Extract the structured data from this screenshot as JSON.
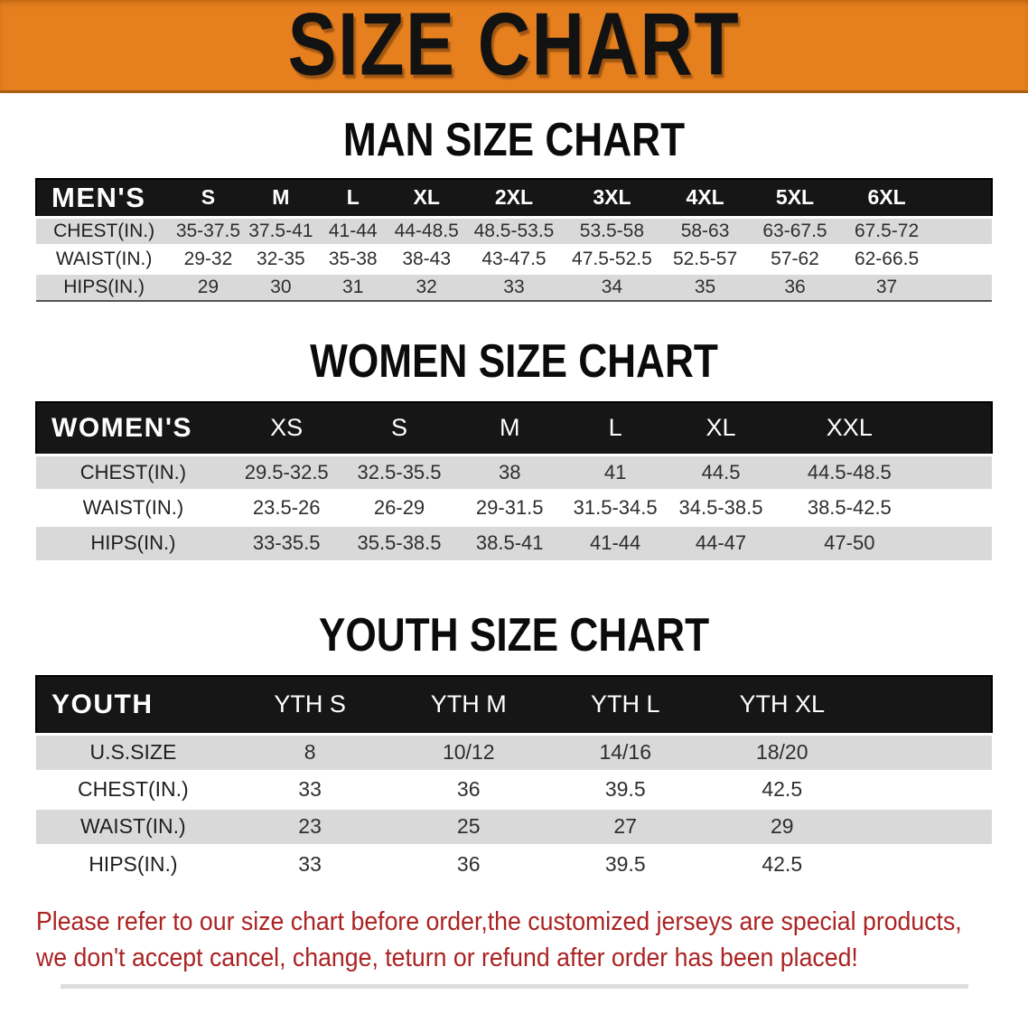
{
  "banner": {
    "title": "SIZE CHART"
  },
  "colors": {
    "banner_bg": "#E67F1E",
    "banner_edge": "#A85C10",
    "header_bar_bg": "#161616",
    "header_bar_text": "#FFFFFF",
    "row_gray": "#D9D9D9",
    "row_white": "#FFFFFF",
    "cell_text": "#2E2E2E",
    "footer_text": "#AB2323"
  },
  "tables": {
    "men": {
      "heading": "MAN SIZE CHART",
      "corner_label": "MEN'S",
      "size_headers": [
        "S",
        "M",
        "L",
        "XL",
        "2XL",
        "3XL",
        "4XL",
        "5XL",
        "6XL"
      ],
      "rows": [
        {
          "label": "CHEST(IN.)",
          "values": [
            "35-37.5",
            "37.5-41",
            "41-44",
            "44-48.5",
            "48.5-53.5",
            "53.5-58",
            "58-63",
            "63-67.5",
            "67.5-72"
          ]
        },
        {
          "label": "WAIST(IN.)",
          "values": [
            "29-32",
            "32-35",
            "35-38",
            "38-43",
            "43-47.5",
            "47.5-52.5",
            "52.5-57",
            "57-62",
            "62-66.5"
          ]
        },
        {
          "label": "HIPS(IN.)",
          "values": [
            "29",
            "30",
            "31",
            "32",
            "33",
            "34",
            "35",
            "36",
            "37"
          ]
        }
      ]
    },
    "women": {
      "heading": "WOMEN SIZE CHART",
      "corner_label": "WOMEN'S",
      "size_headers": [
        "XS",
        "S",
        "M",
        "L",
        "XL",
        "XXL"
      ],
      "rows": [
        {
          "label": "CHEST(IN.)",
          "values": [
            "29.5-32.5",
            "32.5-35.5",
            "38",
            "41",
            "44.5",
            "44.5-48.5"
          ]
        },
        {
          "label": "WAIST(IN.)",
          "values": [
            "23.5-26",
            "26-29",
            "29-31.5",
            "31.5-34.5",
            "34.5-38.5",
            "38.5-42.5"
          ]
        },
        {
          "label": "HIPS(IN.)",
          "values": [
            "33-35.5",
            "35.5-38.5",
            "38.5-41",
            "41-44",
            "44-47",
            "47-50"
          ]
        }
      ]
    },
    "youth": {
      "heading": "YOUTH SIZE CHART",
      "corner_label": "YOUTH",
      "size_headers": [
        "YTH S",
        "YTH M",
        "YTH L",
        "YTH XL"
      ],
      "rows": [
        {
          "label": "U.S.SIZE",
          "values": [
            "8",
            "10/12",
            "14/16",
            "18/20"
          ]
        },
        {
          "label": "CHEST(IN.)",
          "values": [
            "33",
            "36",
            "39.5",
            "42.5"
          ]
        },
        {
          "label": "WAIST(IN.)",
          "values": [
            "23",
            "25",
            "27",
            "29"
          ]
        },
        {
          "label": "HIPS(IN.)",
          "values": [
            "33",
            "36",
            "39.5",
            "42.5"
          ]
        }
      ]
    }
  },
  "footer": {
    "line1": "Please refer to our size chart before order,the customized jerseys are special products,",
    "line2": "we don't accept cancel, change, teturn or refund after order has been placed!"
  }
}
